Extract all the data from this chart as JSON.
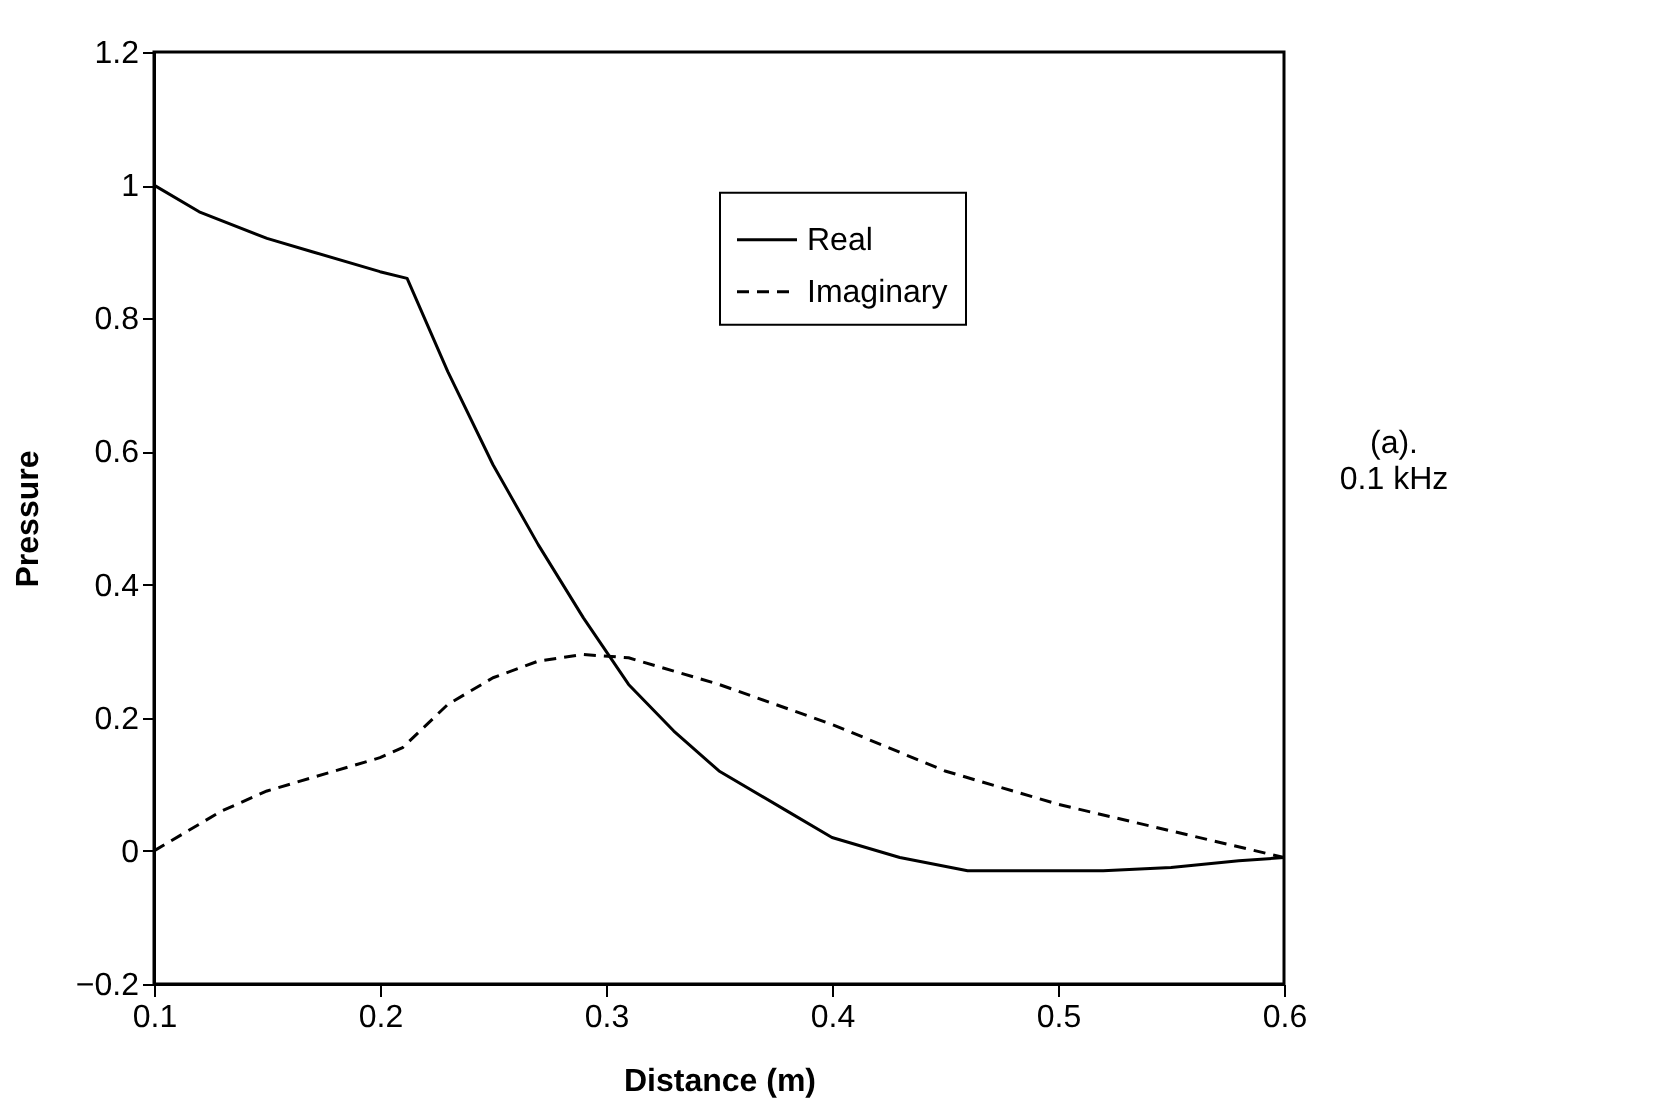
{
  "chart_data": {
    "type": "line",
    "xlabel": "Distance  (m)",
    "ylabel": "Pressure",
    "xlim": [
      0.1,
      0.6
    ],
    "xticks": [
      0.1,
      0.2,
      0.3,
      0.4,
      0.5,
      0.6
    ],
    "ylim": [
      -0.2,
      1.2
    ],
    "yticks": [
      -0.2,
      0,
      0.2,
      0.4,
      0.6,
      0.8,
      1,
      1.2
    ],
    "grid": false,
    "legend": "top right",
    "marker": "none",
    "annotations": [
      "(a).\n0.1 kHz"
    ],
    "series": [
      {
        "name": "Real",
        "color": "#000000",
        "line_style": "solid",
        "x": [
          0.1,
          0.12,
          0.15,
          0.17,
          0.2,
          0.212,
          0.23,
          0.25,
          0.27,
          0.29,
          0.31,
          0.33,
          0.35,
          0.38,
          0.4,
          0.43,
          0.46,
          0.48,
          0.52,
          0.55,
          0.58,
          0.6
        ],
        "values": [
          1.0,
          0.96,
          0.92,
          0.9,
          0.87,
          0.86,
          0.72,
          0.58,
          0.46,
          0.35,
          0.25,
          0.18,
          0.12,
          0.06,
          0.02,
          -0.01,
          -0.03,
          -0.03,
          -0.03,
          -0.025,
          -0.015,
          -0.01
        ]
      },
      {
        "name": "Imaginary",
        "color": "#000000",
        "line_style": "dashed",
        "x": [
          0.1,
          0.13,
          0.15,
          0.18,
          0.2,
          0.21,
          0.23,
          0.25,
          0.27,
          0.29,
          0.31,
          0.35,
          0.4,
          0.45,
          0.5,
          0.55,
          0.6
        ],
        "values": [
          0.0,
          0.06,
          0.09,
          0.12,
          0.14,
          0.155,
          0.22,
          0.26,
          0.285,
          0.295,
          0.29,
          0.25,
          0.19,
          0.12,
          0.07,
          0.03,
          -0.01
        ]
      }
    ]
  }
}
